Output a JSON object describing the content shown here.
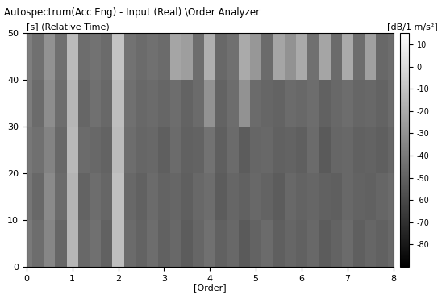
{
  "chart_data": {
    "type": "heatmap",
    "title": "Autospectrum(Acc Eng) - Input (Real) \\Order Analyzer",
    "xlabel": "[Order]",
    "ylabel": "[s] (Relative Time)",
    "colorbar_label": "[dB/1 m/s²]",
    "x": [
      0,
      0.25,
      0.5,
      0.75,
      1,
      1.25,
      1.5,
      1.75,
      2,
      2.25,
      2.5,
      2.75,
      3,
      3.25,
      3.5,
      3.75,
      4,
      4.25,
      4.5,
      4.75,
      5,
      5.25,
      5.5,
      5.75,
      6,
      6.25,
      6.5,
      6.75,
      7,
      7.25,
      7.5,
      7.75,
      8
    ],
    "y": [
      5,
      15,
      25,
      35,
      45
    ],
    "cells": [
      [
        -40,
        -45,
        -35,
        -48,
        -15,
        -47,
        -44,
        -50,
        -12,
        -46,
        -49,
        -45,
        -50,
        -47,
        -52,
        -48,
        -44,
        -50,
        -47,
        -53,
        -49,
        -46,
        -51,
        -48,
        -50,
        -47,
        -52,
        -49,
        -46,
        -51,
        -48,
        -50,
        -47
      ],
      [
        -42,
        -47,
        -33,
        -46,
        -16,
        -49,
        -45,
        -48,
        -11,
        -47,
        -50,
        -46,
        -49,
        -48,
        -51,
        -47,
        -45,
        -52,
        -48,
        -50,
        -47,
        -49,
        -52,
        -47,
        -49,
        -48,
        -50,
        -51,
        -47,
        -49,
        -50,
        -48,
        -46
      ],
      [
        -41,
        -44,
        -36,
        -47,
        -14,
        -46,
        -47,
        -49,
        -13,
        -45,
        -48,
        -47,
        -51,
        -46,
        -50,
        -49,
        -43,
        -51,
        -46,
        -52,
        -48,
        -47,
        -50,
        -49,
        -51,
        -46,
        -53,
        -48,
        -47,
        -50,
        -49,
        -51,
        -48
      ],
      [
        -39,
        -46,
        -32,
        -45,
        -15,
        -48,
        -44,
        -47,
        -12,
        -44,
        -47,
        -46,
        -48,
        -45,
        -49,
        -46,
        -30,
        -49,
        -45,
        -30,
        -46,
        -48,
        -49,
        -46,
        -47,
        -45,
        -50,
        -47,
        -45,
        -48,
        -47,
        -49,
        -46
      ],
      [
        -38,
        -44,
        -30,
        -44,
        -13,
        -45,
        -43,
        -46,
        -10,
        -43,
        -46,
        -44,
        -46,
        -22,
        -25,
        -45,
        -18,
        -47,
        -44,
        -20,
        -28,
        -46,
        -22,
        -30,
        -20,
        -44,
        -22,
        -46,
        -20,
        -45,
        -24,
        -47,
        -45
      ]
    ],
    "xlim": [
      0,
      8
    ],
    "ylim": [
      0,
      50
    ],
    "xticks": [
      0,
      1,
      2,
      3,
      4,
      5,
      6,
      7,
      8
    ],
    "yticks": [
      0,
      10,
      20,
      30,
      40,
      50
    ],
    "colorbar_range": [
      -90,
      15
    ],
    "colorbar_ticks": [
      10,
      0,
      -10,
      -20,
      -30,
      -40,
      -50,
      -60,
      -70,
      -80
    ]
  }
}
